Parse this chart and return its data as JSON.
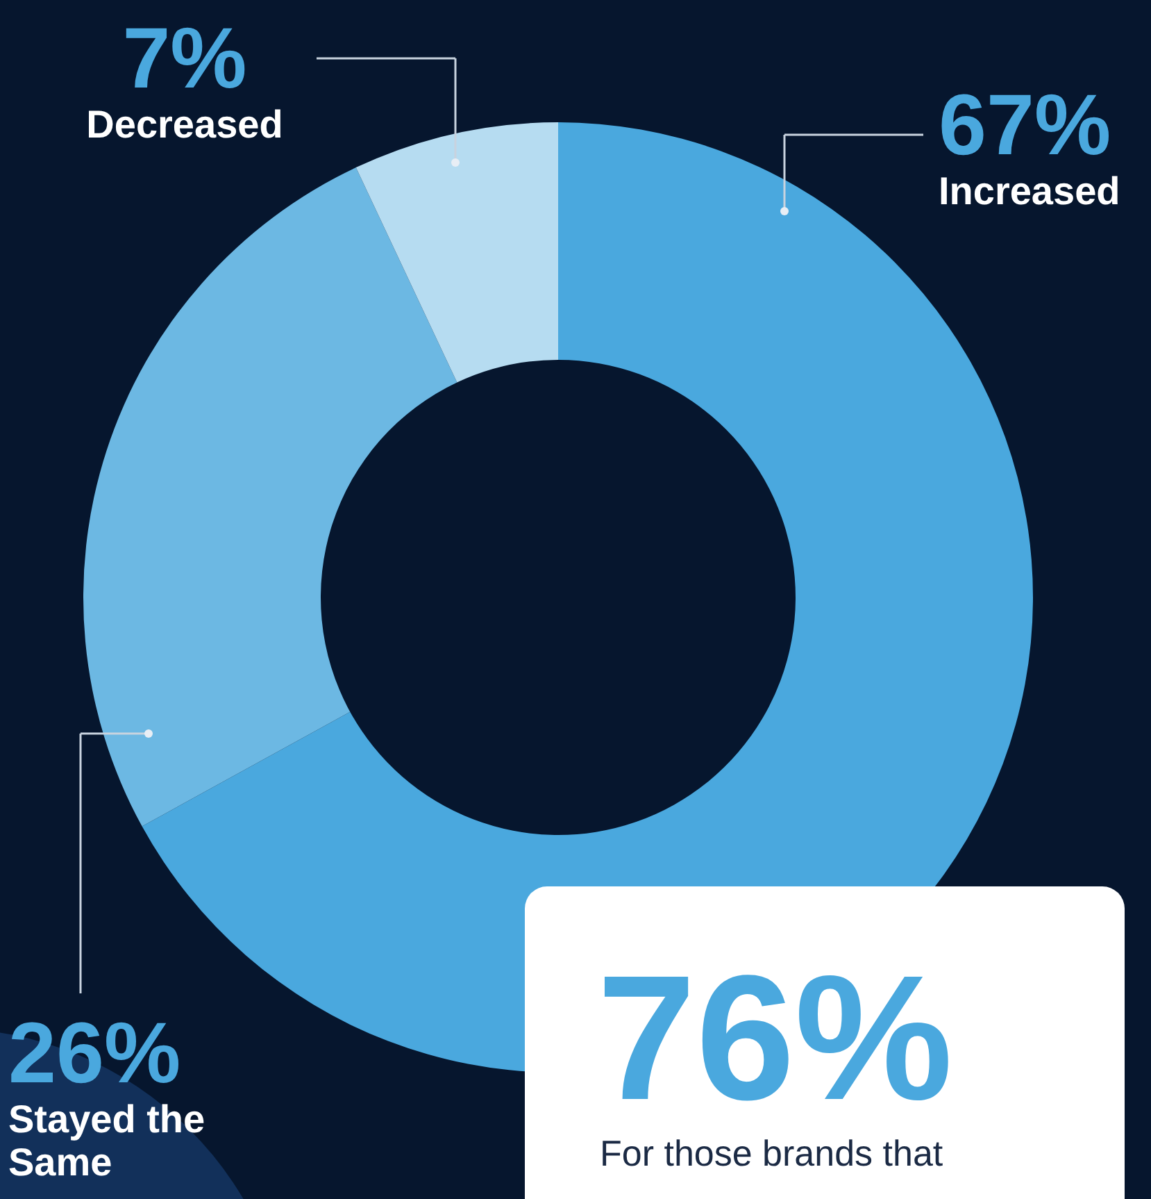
{
  "chart_data": {
    "type": "donut",
    "categories": [
      "Increased",
      "Stayed the Same",
      "Decreased"
    ],
    "values": [
      67,
      26,
      7
    ],
    "value_labels": [
      "67%",
      "26%",
      "7%"
    ],
    "colors": [
      "#4aa8de",
      "#6cb8e3",
      "#b6dcf1"
    ],
    "legend": false,
    "annotations": [
      "76%",
      "For those brands that"
    ]
  }
}
